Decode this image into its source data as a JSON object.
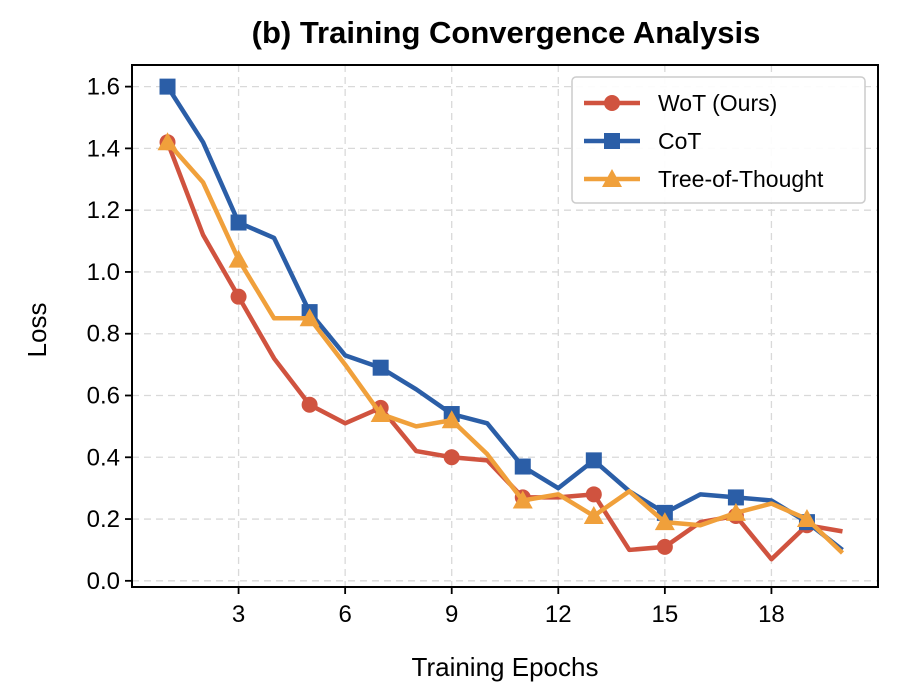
{
  "chart_data": {
    "type": "line",
    "title": "(b) Training Convergence Analysis",
    "xlabel": "Training Epochs",
    "ylabel": "Loss",
    "xlim": [
      0,
      21
    ],
    "ylim": [
      -0.02,
      1.67
    ],
    "x": [
      1,
      2,
      3,
      4,
      5,
      6,
      7,
      8,
      9,
      10,
      11,
      12,
      13,
      14,
      15,
      16,
      17,
      18,
      19,
      20
    ],
    "xticks": [
      3,
      6,
      9,
      12,
      15,
      18
    ],
    "xtick_labels": [
      "3",
      "6",
      "9",
      "12",
      "15",
      "18"
    ],
    "yticks": [
      0.0,
      0.2,
      0.4,
      0.6,
      0.8,
      1.0,
      1.2,
      1.4,
      1.6
    ],
    "ytick_labels": [
      "0.0",
      "0.2",
      "0.4",
      "0.6",
      "0.8",
      "1.0",
      "1.2",
      "1.4",
      "1.6"
    ],
    "grid": true,
    "legend_position": "top-right",
    "series": [
      {
        "name": "WoT (Ours)",
        "color": "#d0533f",
        "marker": "circle",
        "values": [
          1.42,
          1.12,
          0.92,
          0.72,
          0.57,
          0.51,
          0.56,
          0.42,
          0.4,
          0.39,
          0.27,
          0.27,
          0.28,
          0.1,
          0.11,
          0.19,
          0.21,
          0.07,
          0.18,
          0.16
        ]
      },
      {
        "name": "CoT",
        "color": "#2b5ea7",
        "marker": "square",
        "values": [
          1.6,
          1.42,
          1.16,
          1.11,
          0.87,
          0.73,
          0.69,
          0.62,
          0.54,
          0.51,
          0.37,
          0.3,
          0.39,
          0.29,
          0.22,
          0.28,
          0.27,
          0.26,
          0.19,
          0.1
        ]
      },
      {
        "name": "Tree-of-Thought",
        "color": "#f0a03b",
        "marker": "triangle",
        "values": [
          1.42,
          1.29,
          1.04,
          0.85,
          0.85,
          0.7,
          0.54,
          0.5,
          0.52,
          0.41,
          0.26,
          0.28,
          0.21,
          0.29,
          0.19,
          0.18,
          0.22,
          0.25,
          0.2,
          0.09
        ]
      }
    ]
  }
}
